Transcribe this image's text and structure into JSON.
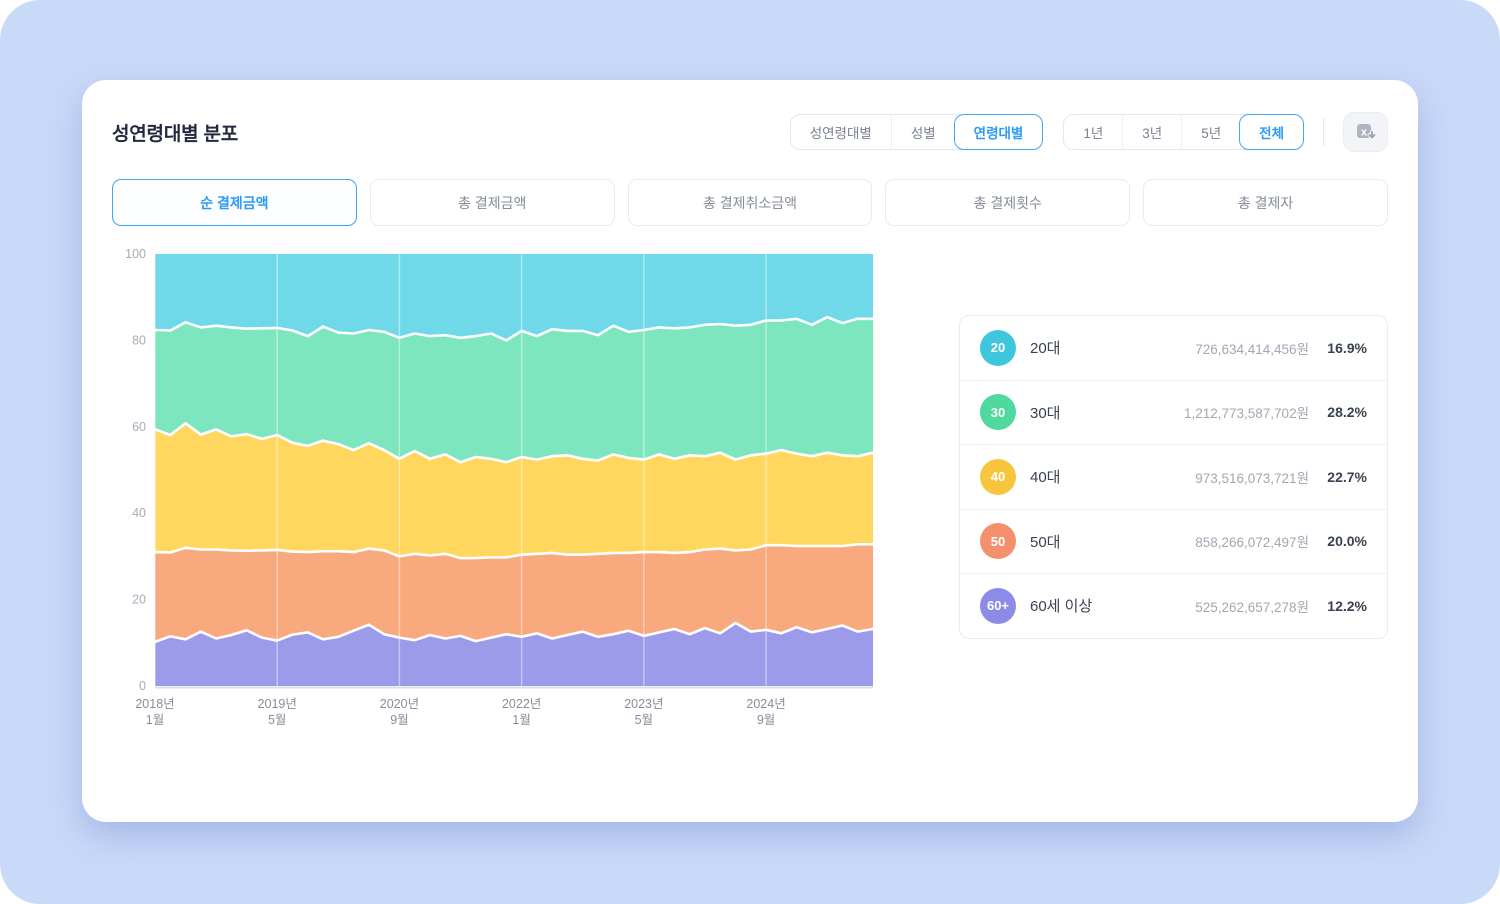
{
  "accent_color": "#2E9BF5",
  "page_background": "#C9D9F8",
  "header": {
    "title": "성연령대별 분포"
  },
  "controls": {
    "category_group": [
      {
        "label": "성연령대별",
        "selected": false
      },
      {
        "label": "성별",
        "selected": false
      },
      {
        "label": "연령대별",
        "selected": true
      }
    ],
    "period_group": [
      {
        "label": "1년",
        "selected": false
      },
      {
        "label": "3년",
        "selected": false
      },
      {
        "label": "5년",
        "selected": false
      },
      {
        "label": "전체",
        "selected": true
      }
    ]
  },
  "metric_tabs": [
    {
      "label": "순 결제금액",
      "selected": true
    },
    {
      "label": "총 결제금액",
      "selected": false
    },
    {
      "label": "총 결제취소금액",
      "selected": false
    },
    {
      "label": "총 결제횟수",
      "selected": false
    },
    {
      "label": "총 결제자",
      "selected": false
    }
  ],
  "legend": {
    "rows": [
      {
        "badge": "20",
        "label": "20대",
        "amount": "726,634,414,456원",
        "percent": "16.9%",
        "color": "#3EC6DE"
      },
      {
        "badge": "30",
        "label": "30대",
        "amount": "1,212,773,587,702원",
        "percent": "28.2%",
        "color": "#50D99E"
      },
      {
        "badge": "40",
        "label": "40대",
        "amount": "973,516,073,721원",
        "percent": "22.7%",
        "color": "#F7C63E"
      },
      {
        "badge": "50",
        "label": "50대",
        "amount": "858,266,072,497원",
        "percent": "20.0%",
        "color": "#F4906B"
      },
      {
        "badge": "60+",
        "label": "60세 이상",
        "amount": "525,262,657,278원",
        "percent": "12.2%",
        "color": "#8D8BE8"
      }
    ]
  },
  "chart_data": {
    "type": "area",
    "stacked": true,
    "normalized_percent": true,
    "title": "성연령대별 분포 — 순 결제금액 연령대별 비중(%)",
    "xlabel": "",
    "ylabel": "",
    "ylim": [
      0,
      100
    ],
    "yticks": [
      0,
      20,
      40,
      60,
      80,
      100
    ],
    "grid": "faint-vertical",
    "legend_position": "right",
    "x_range_note": "2018년 1월부터 월 2개월 간격 48포인트",
    "x_tick_indices": [
      0,
      8,
      16,
      24,
      32,
      40
    ],
    "x_tick_labels": [
      {
        "line1": "2018년",
        "line2": "1월"
      },
      {
        "line1": "2019년",
        "line2": "5월"
      },
      {
        "line1": "2020년",
        "line2": "9월"
      },
      {
        "line1": "2022년",
        "line2": "1월"
      },
      {
        "line1": "2023년",
        "line2": "5월"
      },
      {
        "line1": "2024년",
        "line2": "9월"
      }
    ],
    "series": [
      {
        "name": "60세 이상",
        "color": "#9C9BEA",
        "values": [
          10.2,
          11.5,
          10.8,
          12.6,
          11.0,
          11.8,
          12.9,
          11.2,
          10.5,
          11.9,
          12.4,
          10.8,
          11.4,
          12.8,
          14.2,
          12.0,
          11.2,
          10.6,
          11.8,
          11.0,
          11.6,
          10.4,
          11.2,
          12.0,
          11.4,
          12.2,
          11.0,
          11.8,
          12.6,
          11.4,
          12.0,
          12.8,
          11.6,
          12.4,
          13.2,
          12.0,
          13.4,
          12.2,
          14.6,
          12.6,
          13.0,
          12.2,
          13.6,
          12.4,
          13.2,
          14.0,
          12.6,
          13.2
        ]
      },
      {
        "name": "50대",
        "color": "#F9A97E",
        "values": [
          20.8,
          19.4,
          21.2,
          19.0,
          20.6,
          19.6,
          18.4,
          20.2,
          21.0,
          19.2,
          18.6,
          20.4,
          19.8,
          18.2,
          17.6,
          19.4,
          18.8,
          20.0,
          18.4,
          19.6,
          18.0,
          19.2,
          18.6,
          17.8,
          19.0,
          18.4,
          19.8,
          18.6,
          17.8,
          19.2,
          18.8,
          18.0,
          19.4,
          18.6,
          17.6,
          19.0,
          18.2,
          19.6,
          16.8,
          19.0,
          19.6,
          20.4,
          18.8,
          20.0,
          19.2,
          18.4,
          20.2,
          19.6
        ]
      },
      {
        "name": "40대",
        "color": "#FFD75F",
        "values": [
          28.4,
          27.2,
          28.8,
          26.6,
          27.8,
          26.4,
          27.0,
          25.8,
          26.6,
          25.2,
          24.6,
          25.6,
          24.8,
          23.6,
          24.4,
          23.2,
          22.6,
          23.8,
          22.4,
          23.0,
          22.2,
          23.4,
          22.8,
          22.0,
          22.6,
          21.8,
          22.4,
          23.0,
          22.2,
          21.6,
          22.8,
          22.0,
          21.4,
          22.6,
          21.8,
          22.4,
          21.6,
          22.2,
          21.0,
          21.8,
          21.2,
          22.0,
          21.4,
          20.8,
          21.6,
          21.0,
          20.4,
          21.2
        ]
      },
      {
        "name": "30대",
        "color": "#7EE6BE",
        "values": [
          23.0,
          24.2,
          23.4,
          24.8,
          24.0,
          25.2,
          24.4,
          25.6,
          24.8,
          26.0,
          25.4,
          26.4,
          25.8,
          27.0,
          26.2,
          27.4,
          28.0,
          27.2,
          28.4,
          27.6,
          28.8,
          28.0,
          29.0,
          28.2,
          29.2,
          28.6,
          29.4,
          28.8,
          29.6,
          29.0,
          29.8,
          29.2,
          30.0,
          29.4,
          30.2,
          29.6,
          30.4,
          29.8,
          31.0,
          30.2,
          30.8,
          30.0,
          31.2,
          30.4,
          31.4,
          30.6,
          31.8,
          31.0
        ]
      },
      {
        "name": "20대",
        "color": "#6FD9E9",
        "values": [
          17.6,
          17.7,
          15.8,
          17.0,
          16.6,
          17.0,
          17.3,
          17.2,
          17.1,
          17.7,
          19.0,
          16.8,
          18.2,
          18.4,
          17.6,
          18.0,
          19.4,
          18.4,
          19.0,
          18.8,
          19.4,
          19.0,
          18.4,
          20.0,
          17.8,
          19.0,
          17.4,
          17.8,
          17.8,
          18.8,
          16.6,
          18.0,
          17.6,
          17.0,
          17.2,
          17.0,
          16.4,
          16.2,
          16.6,
          16.4,
          15.4,
          15.4,
          15.0,
          16.4,
          14.6,
          16.0,
          15.0,
          15.0
        ]
      }
    ]
  }
}
